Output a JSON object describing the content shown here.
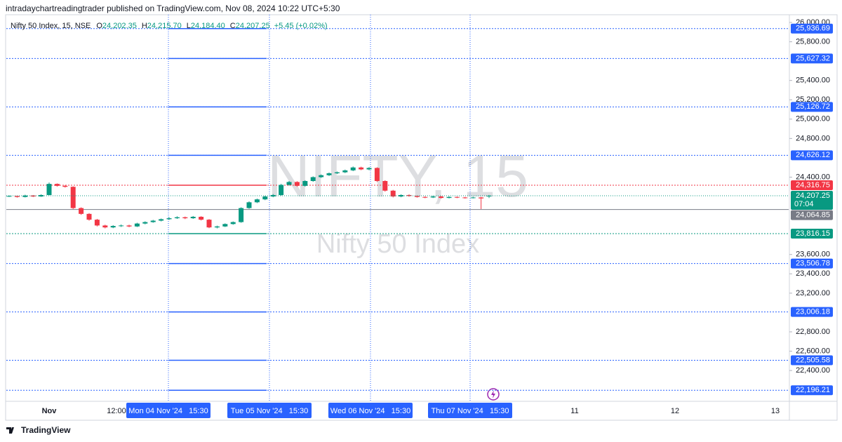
{
  "header": {
    "published": "intradaychartreadingtrader published on TradingView.com, Nov 08, 2024 10:22 UTC+5:30"
  },
  "footer": {
    "brand": "TradingView"
  },
  "chart_data": {
    "type": "candlestick",
    "symbol": "Nifty 50 Index, 15, NSE",
    "legend": [
      {
        "key": "O",
        "text": "24,202.35"
      },
      {
        "key": "H",
        "text": "24,215.70"
      },
      {
        "key": "L",
        "text": "24,184.40"
      },
      {
        "key": "C",
        "text": "24,207.25"
      }
    ],
    "change": "+5.45 (+0.02%)",
    "watermark": [
      "NIFTY, 15",
      "Nifty 50 Index"
    ],
    "up_color": "#089981",
    "down_color": "#f23645",
    "candles": [
      [
        24200,
        24212,
        24195,
        24205
      ],
      [
        24205,
        24210,
        24188,
        24195
      ],
      [
        24195,
        24218,
        24190,
        24210
      ],
      [
        24210,
        24215,
        24194,
        24200
      ],
      [
        24200,
        24222,
        24196,
        24215
      ],
      [
        24215,
        24345,
        24212,
        24330
      ],
      [
        24330,
        24335,
        24302,
        24310
      ],
      [
        24310,
        24318,
        24292,
        24300
      ],
      [
        24300,
        24305,
        24070,
        24080
      ],
      [
        24080,
        24088,
        24010,
        24020
      ],
      [
        24020,
        24028,
        23950,
        23960
      ],
      [
        23960,
        23968,
        23890,
        23900
      ],
      [
        23900,
        23908,
        23870,
        23880
      ],
      [
        23880,
        23903,
        23872,
        23895
      ],
      [
        23895,
        23910,
        23885,
        23900
      ],
      [
        23900,
        23908,
        23882,
        23890
      ],
      [
        23890,
        23928,
        23884,
        23920
      ],
      [
        23920,
        23943,
        23912,
        23935
      ],
      [
        23935,
        23958,
        23928,
        23950
      ],
      [
        23950,
        23972,
        23942,
        23965
      ],
      [
        23965,
        23985,
        23958,
        23975
      ],
      [
        23975,
        23995,
        23968,
        23985
      ],
      [
        23985,
        23992,
        23966,
        23975
      ],
      [
        23975,
        23998,
        23968,
        23990
      ],
      [
        23990,
        23996,
        23952,
        23960
      ],
      [
        23960,
        23966,
        23872,
        23880
      ],
      [
        23880,
        23898,
        23870,
        23890
      ],
      [
        23890,
        23922,
        23884,
        23915
      ],
      [
        23915,
        23942,
        23908,
        23935
      ],
      [
        23935,
        24088,
        23928,
        24080
      ],
      [
        24080,
        24150,
        24072,
        24140
      ],
      [
        24140,
        24178,
        24132,
        24170
      ],
      [
        24170,
        24208,
        24162,
        24200
      ],
      [
        24200,
        24225,
        24192,
        24215
      ],
      [
        24215,
        24330,
        24208,
        24320
      ],
      [
        24320,
        24360,
        24312,
        24350
      ],
      [
        24350,
        24358,
        24300,
        24310
      ],
      [
        24310,
        24368,
        24302,
        24360
      ],
      [
        24360,
        24408,
        24352,
        24400
      ],
      [
        24400,
        24428,
        24392,
        24420
      ],
      [
        24420,
        24448,
        24412,
        24440
      ],
      [
        24440,
        24458,
        24432,
        24450
      ],
      [
        24450,
        24478,
        24442,
        24470
      ],
      [
        24470,
        24510,
        24462,
        24500
      ],
      [
        24500,
        24508,
        24472,
        24480
      ],
      [
        24480,
        24503,
        24472,
        24495
      ],
      [
        24495,
        24502,
        24350,
        24360
      ],
      [
        24360,
        24368,
        24250,
        24260
      ],
      [
        24260,
        24268,
        24190,
        24200
      ],
      [
        24200,
        24222,
        24192,
        24215
      ],
      [
        24215,
        24222,
        24198,
        24205
      ],
      [
        24205,
        24212,
        24188,
        24195
      ],
      [
        24195,
        24202,
        24182,
        24190
      ],
      [
        24190,
        24208,
        24184,
        24200
      ],
      [
        24200,
        24206,
        24178,
        24185
      ],
      [
        24185,
        24202,
        24180,
        24195
      ],
      [
        24195,
        24200,
        24183,
        24190
      ],
      [
        24190,
        24196,
        24178,
        24185
      ],
      [
        24185,
        24198,
        24180,
        24190
      ],
      [
        24190,
        24196,
        24070,
        24180
      ],
      [
        24202.35,
        24215.7,
        24184.4,
        24207.25
      ]
    ],
    "ylim": [
      22096,
      26087
    ],
    "yticks": [
      {
        "value": 26000,
        "label": "26,000.00"
      },
      {
        "value": 25800,
        "label": "25,800.00"
      },
      {
        "value": 25400,
        "label": "25,400.00"
      },
      {
        "value": 25200,
        "label": "25,200.00"
      },
      {
        "value": 25000,
        "label": "25,000.00"
      },
      {
        "value": 24800,
        "label": "24,800.00"
      },
      {
        "value": 24400,
        "label": "24,400.00"
      },
      {
        "value": 23600,
        "label": "23,600.00"
      },
      {
        "value": 23400,
        "label": "23,400.00"
      },
      {
        "value": 23200,
        "label": "23,200.00"
      },
      {
        "value": 22800,
        "label": "22,800.00"
      },
      {
        "value": 22600,
        "label": "22,600.00"
      },
      {
        "value": 22400,
        "label": "22,400.00"
      }
    ],
    "levels": [
      {
        "value": 25936.69,
        "label": "25,936.69",
        "color": "#2962ff"
      },
      {
        "value": 25627.32,
        "label": "25,627.32",
        "color": "#2962ff"
      },
      {
        "value": 25126.72,
        "label": "25,126.72",
        "color": "#2962ff"
      },
      {
        "value": 24626.12,
        "label": "24,626.12",
        "color": "#2962ff"
      },
      {
        "value": 24316.75,
        "label": "24,316.75",
        "color": "#f23645"
      },
      {
        "value": 23816.15,
        "label": "23,816.15",
        "color": "#089981"
      },
      {
        "value": 23506.78,
        "label": "23,506.78",
        "color": "#2962ff"
      },
      {
        "value": 23006.18,
        "label": "23,006.18",
        "color": "#2962ff"
      },
      {
        "value": 22505.58,
        "label": "22,505.58",
        "color": "#2962ff"
      },
      {
        "value": 22196.21,
        "label": "22,196.21",
        "color": "#2962ff"
      }
    ],
    "reference_line": {
      "value": 24064.85,
      "label": "24,064.85",
      "color": "#787b86"
    },
    "last_price": {
      "value": 24207.25,
      "label": "24,207.25",
      "countdown": "07:04",
      "color": "#089981"
    },
    "x_labels": [
      "Nov",
      "12:00",
      "Mon 04 Nov '24   15:30",
      "Tue 05 Nov '24   15:30",
      "Wed 06 Nov '24   15:30",
      "Thu 07 Nov '24   15:30",
      "11",
      "12",
      "13"
    ]
  }
}
